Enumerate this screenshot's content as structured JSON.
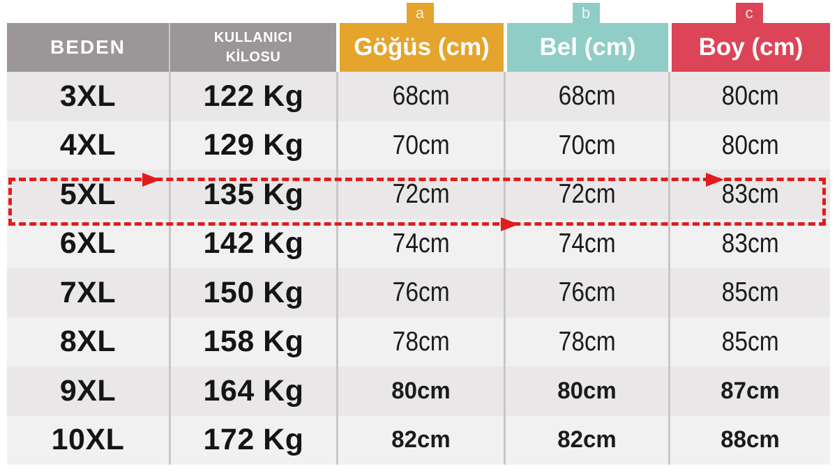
{
  "colors": {
    "gray_header": "#9B9698",
    "orange": "#E5A42C",
    "teal": "#8FCDC6",
    "red": "#DC4458",
    "row_dark": "#E9E7E8",
    "row_light": "#F2F1F1",
    "separator": "#C9C6C7",
    "highlight_red": "#E01D1D",
    "text_dark": "#151515",
    "header_text": "#FFFFFF"
  },
  "tabs": [
    {
      "label": "a",
      "marks_column": "Göğüs (cm)"
    },
    {
      "label": "b",
      "marks_column": "Bel (cm)"
    },
    {
      "label": "c",
      "marks_column": "Boy (cm)"
    }
  ],
  "header": {
    "size_label": "BEDEN",
    "weight_label": "KULLANICI\nKİLOSU",
    "chest_label": "Göğüs (cm)",
    "waist_label": "Bel (cm)",
    "length_label": "Boy (cm)"
  },
  "table_rows": [
    {
      "size": "3XL",
      "weight": "122 Kg",
      "chest": "68cm",
      "waist": "68cm",
      "length": "80cm"
    },
    {
      "size": "4XL",
      "weight": "129 Kg",
      "chest": "70cm",
      "waist": "70cm",
      "length": "80cm"
    },
    {
      "size": "5XL",
      "weight": "135 Kg",
      "chest": "72cm",
      "waist": "72cm",
      "length": "83cm"
    },
    {
      "size": "6XL",
      "weight": "142 Kg",
      "chest": "74cm",
      "waist": "74cm",
      "length": "83cm"
    },
    {
      "size": "7XL",
      "weight": "150 Kg",
      "chest": "76cm",
      "waist": "76cm",
      "length": "85cm"
    },
    {
      "size": "8XL",
      "weight": "158 Kg",
      "chest": "78cm",
      "waist": "78cm",
      "length": "85cm"
    },
    {
      "size": "9XL",
      "weight": "164 Kg",
      "chest": "80cm",
      "waist": "80cm",
      "length": "87cm"
    },
    {
      "size": "10XL",
      "weight": "172 Kg",
      "chest": "82cm",
      "waist": "82cm",
      "length": "88cm"
    }
  ],
  "highlight": {
    "row": "5XL"
  },
  "chart_data": {
    "type": "table",
    "columns": [
      "BEDEN",
      "KULLANICI KİLOSU",
      "Göğüs (cm)",
      "Bel (cm)",
      "Boy (cm)"
    ],
    "column_marker_letters": {
      "Göğüs (cm)": "a",
      "Bel (cm)": "b",
      "Boy (cm)": "c"
    },
    "rows": [
      [
        "3XL",
        "122 Kg",
        "68cm",
        "68cm",
        "80cm"
      ],
      [
        "4XL",
        "129 Kg",
        "70cm",
        "70cm",
        "80cm"
      ],
      [
        "5XL",
        "135 Kg",
        "72cm",
        "72cm",
        "83cm"
      ],
      [
        "6XL",
        "142 Kg",
        "74cm",
        "74cm",
        "83cm"
      ],
      [
        "7XL",
        "150 Kg",
        "76cm",
        "76cm",
        "85cm"
      ],
      [
        "8XL",
        "158 Kg",
        "78cm",
        "78cm",
        "85cm"
      ],
      [
        "9XL",
        "164 Kg",
        "80cm",
        "80cm",
        "87cm"
      ],
      [
        "10XL",
        "172 Kg",
        "82cm",
        "82cm",
        "88cm"
      ]
    ],
    "numeric": {
      "sizes": [
        "3XL",
        "4XL",
        "5XL",
        "6XL",
        "7XL",
        "8XL",
        "9XL",
        "10XL"
      ],
      "weight_kg": [
        122,
        129,
        135,
        142,
        150,
        158,
        164,
        172
      ],
      "chest_cm": [
        68,
        70,
        72,
        74,
        76,
        78,
        80,
        82
      ],
      "waist_cm": [
        68,
        70,
        72,
        74,
        76,
        78,
        80,
        82
      ],
      "length_cm": [
        80,
        80,
        83,
        83,
        85,
        85,
        87,
        88
      ]
    },
    "highlighted_row": "5XL"
  }
}
